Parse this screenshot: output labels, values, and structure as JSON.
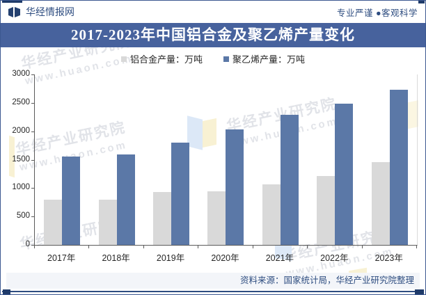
{
  "header": {
    "brand": "华经情报网",
    "tagline": "专业严谨 ●客观科学"
  },
  "title": "2017-2023年中国铝合金及聚乙烯产量变化",
  "chart_data": {
    "type": "bar",
    "title": "2017-2023年中国铝合金及聚乙烯产量变化",
    "categories": [
      "2017年",
      "2018年",
      "2019年",
      "2020年",
      "2021年",
      "2022年",
      "2023年"
    ],
    "series": [
      {
        "name": "铝合金产量：万吨",
        "color": "#d9d9d9",
        "values": [
          790,
          795,
          930,
          945,
          1065,
          1215,
          1460
        ]
      },
      {
        "name": "聚乙烯产量：万吨",
        "color": "#5b78a7",
        "values": [
          1550,
          1590,
          1800,
          2030,
          2290,
          2490,
          2730
        ]
      }
    ],
    "ylim": [
      0,
      3000
    ],
    "yticks": [
      0,
      500,
      1000,
      1500,
      2000,
      2500,
      3000
    ],
    "grid": false,
    "legend_position": "top"
  },
  "source": "资料来源：国家统计局，华经产业研究院整理",
  "watermark": {
    "text": "华经产业研究院",
    "url": "www.huaon.com"
  },
  "colors": {
    "title_bar": "#47629d",
    "bar_gray": "#d9d9d9",
    "bar_blue": "#5b78a7",
    "accent_navy": "#1e3a69",
    "text_navy": "#2e4d80",
    "source_bg": "#f3f5f9"
  }
}
